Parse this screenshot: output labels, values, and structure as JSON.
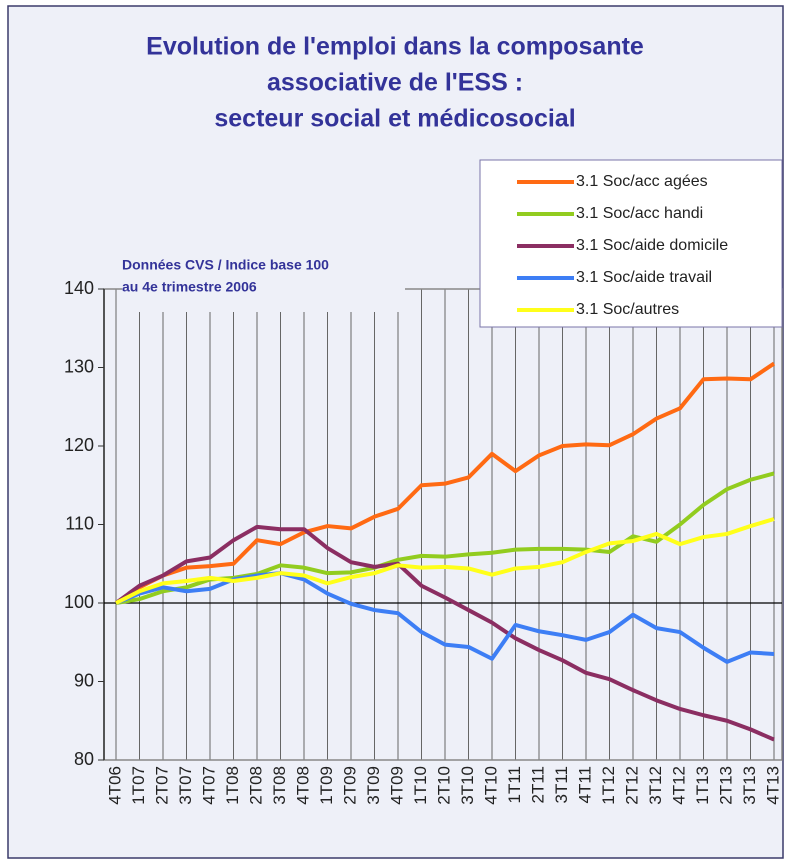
{
  "chart_data": {
    "type": "line",
    "title": [
      "Evolution de l'emploi dans la composante",
      "associative de l'ESS :",
      "secteur social et médicosocial"
    ],
    "annotation": [
      "Données CVS / Indice base 100",
      "au 4e trimestre 2006"
    ],
    "categories": [
      "4T06",
      "1T07",
      "2T07",
      "3T07",
      "4T07",
      "1T08",
      "2T08",
      "3T08",
      "4T08",
      "1T09",
      "2T09",
      "3T09",
      "4T09",
      "1T10",
      "2T10",
      "3T10",
      "4T10",
      "1T11",
      "2T11",
      "3T11",
      "4T11",
      "1T12",
      "2T12",
      "3T12",
      "4T12",
      "1T13",
      "2T13",
      "3T13",
      "4T13"
    ],
    "series": [
      {
        "name": "3.1 Soc/acc agées",
        "color": "#ff6a13",
        "values": [
          100,
          102,
          103.5,
          104.5,
          104.7,
          105,
          108,
          107.5,
          109,
          109.8,
          109.5,
          111,
          112,
          115,
          115.2,
          116,
          119,
          116.8,
          118.8,
          120,
          120.2,
          120.1,
          121.5,
          123.5,
          124.8,
          128.5,
          128.6,
          128.5,
          130.5
        ]
      },
      {
        "name": "3.1 Soc/acc handi",
        "color": "#92cc1f",
        "values": [
          100,
          100.5,
          101.5,
          102,
          103,
          103.2,
          103.7,
          104.8,
          104.5,
          103.8,
          103.9,
          104.5,
          105.5,
          106,
          105.9,
          106.2,
          106.4,
          106.8,
          106.9,
          106.9,
          106.8,
          106.5,
          108.5,
          107.8,
          110,
          112.5,
          114.5,
          115.7,
          116.5
        ]
      },
      {
        "name": "3.1 Soc/aide domicile",
        "color": "#8b2e62",
        "values": [
          100,
          102.2,
          103.5,
          105.3,
          105.8,
          108,
          109.7,
          109.4,
          109.4,
          107,
          105.2,
          104.6,
          105,
          102.2,
          100.7,
          99.1,
          97.5,
          95.5,
          94,
          92.7,
          91.1,
          90.3,
          88.9,
          87.6,
          86.5,
          85.7,
          85,
          83.9,
          82.6
        ]
      },
      {
        "name": "3.1 Soc/aide travail",
        "color": "#3d7ef5",
        "values": [
          100,
          101.2,
          102,
          101.5,
          101.8,
          103,
          103.5,
          103.8,
          103,
          101.2,
          99.9,
          99.1,
          98.7,
          96.3,
          94.7,
          94.4,
          92.9,
          97.2,
          96.4,
          95.9,
          95.3,
          96.3,
          98.5,
          96.8,
          96.3,
          94.3,
          92.5,
          93.7,
          93.5
        ]
      },
      {
        "name": "3.1 Soc/autres",
        "color": "#ffff1a",
        "values": [
          100,
          101.5,
          102.5,
          102.8,
          103.2,
          102.8,
          103.2,
          103.8,
          103.5,
          102.5,
          103.3,
          103.8,
          104.8,
          104.5,
          104.6,
          104.4,
          103.6,
          104.4,
          104.6,
          105.2,
          106.5,
          107.6,
          107.9,
          108.8,
          107.5,
          108.4,
          108.8,
          109.8,
          110.7
        ]
      }
    ],
    "ylim": [
      80,
      140
    ],
    "yticks": [
      80,
      90,
      100,
      110,
      120,
      130,
      140
    ],
    "grid": true
  }
}
